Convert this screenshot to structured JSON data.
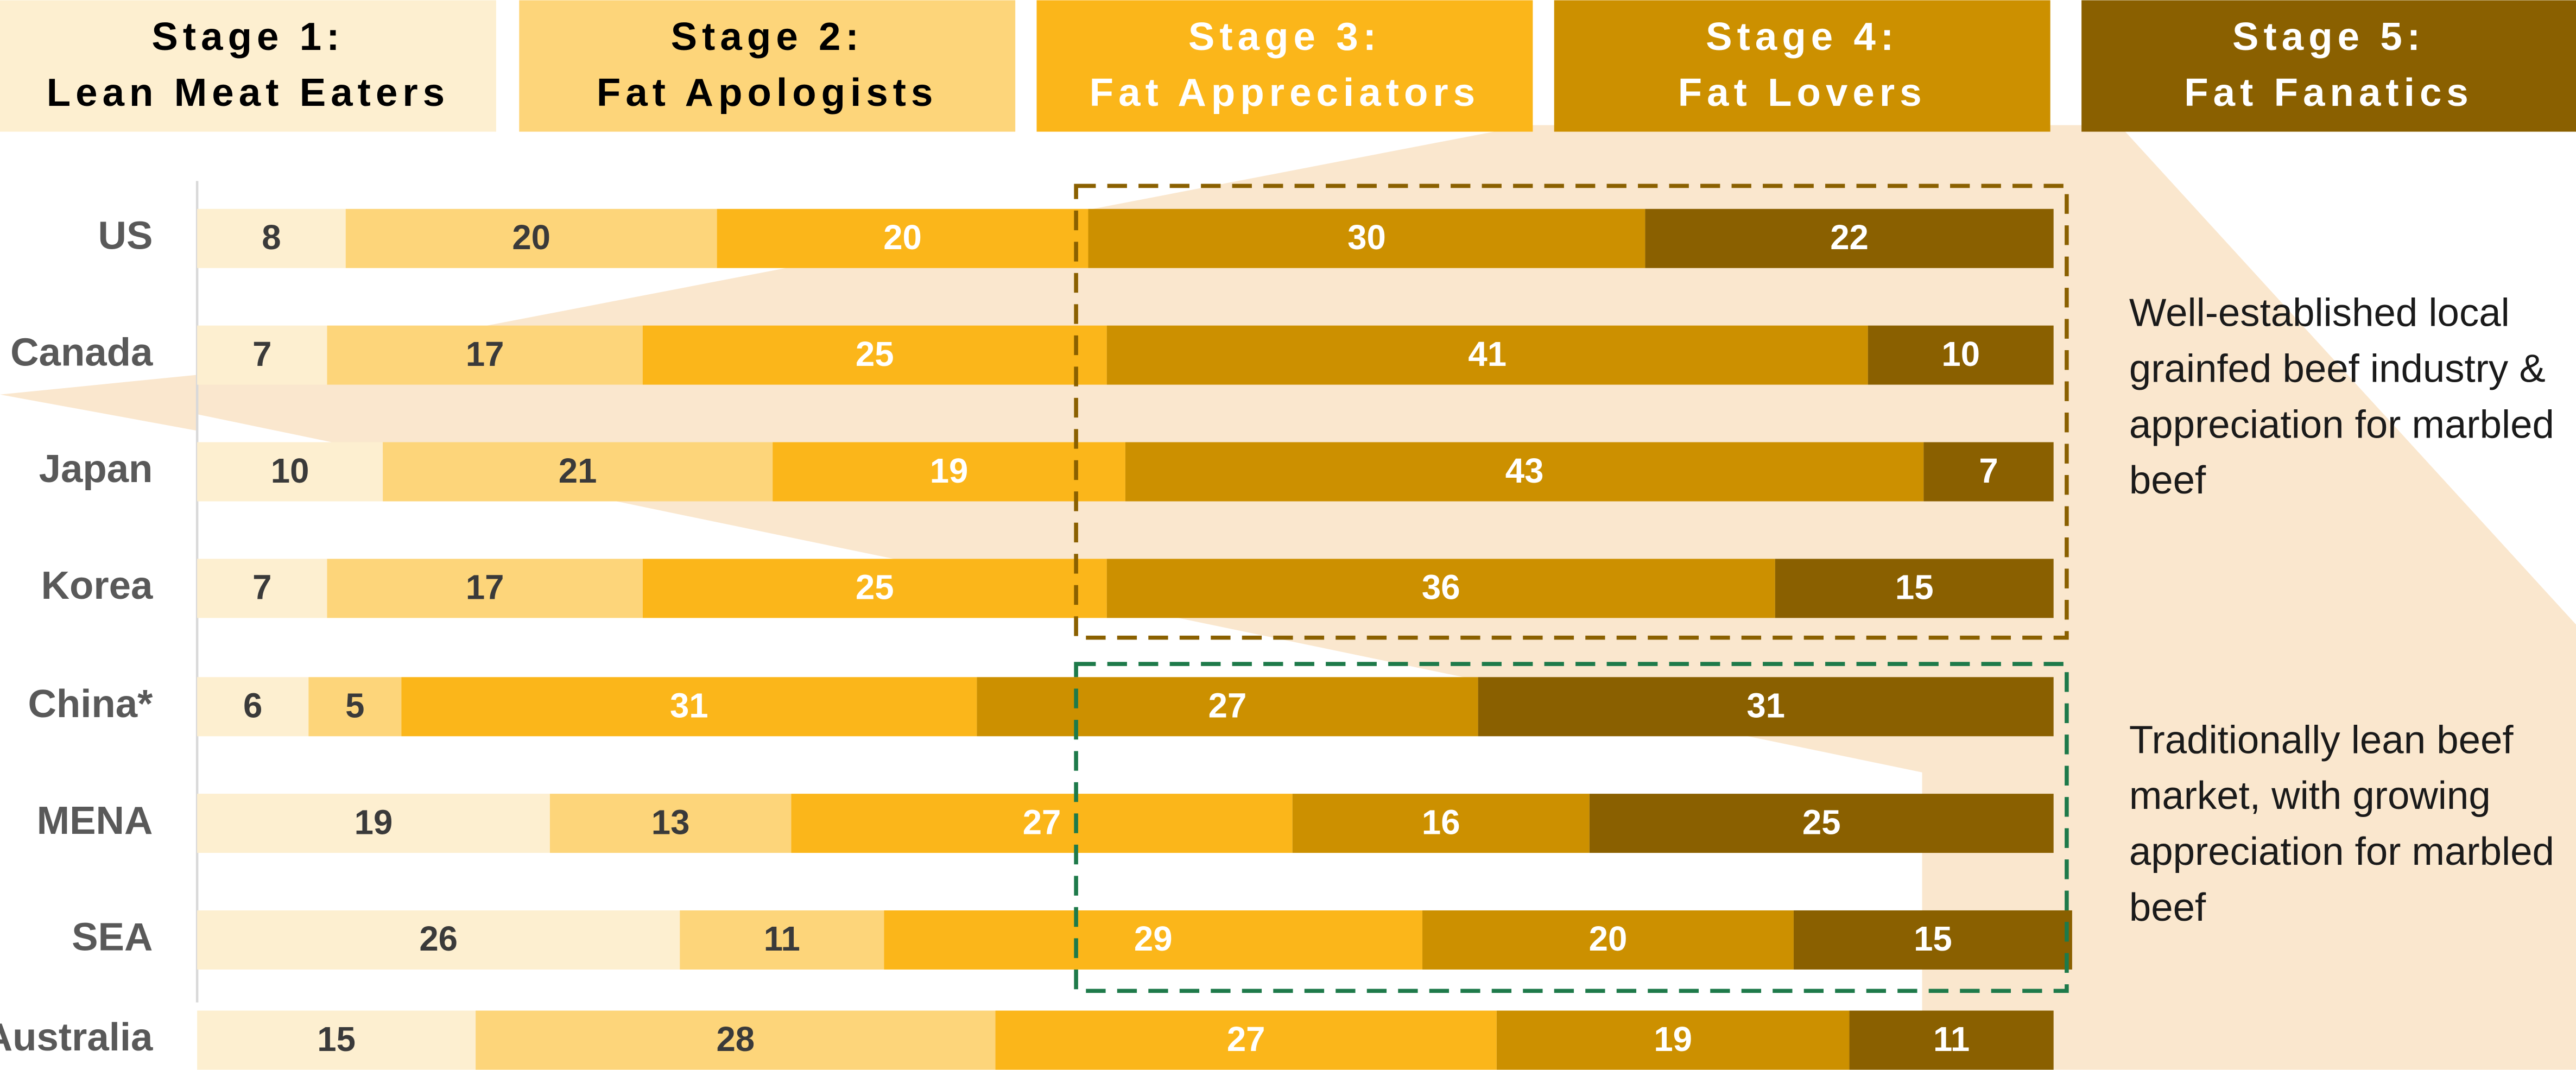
{
  "chart_data": {
    "type": "stacked-barh",
    "categories": [
      "US",
      "Canada",
      "Japan",
      "Korea",
      "China*",
      "MENA",
      "SEA",
      "Australia"
    ],
    "xlim": [
      0,
      100
    ],
    "series": [
      {
        "name": "Stage 1:\nLean Meat Eaters",
        "color": "#fdefd0",
        "label_color": "#3a3a3a",
        "header_text_color": "#000000",
        "values": [
          8,
          7,
          10,
          7,
          6,
          19,
          26,
          15
        ]
      },
      {
        "name": "Stage 2:\nFat Apologists",
        "color": "#fdd57a",
        "label_color": "#3a3a3a",
        "header_text_color": "#000000",
        "values": [
          20,
          17,
          21,
          17,
          5,
          13,
          11,
          28
        ]
      },
      {
        "name": "Stage 3:\nFat Appreciators",
        "color": "#fbb61a",
        "label_color": "#ffffff",
        "header_text_color": "#ffffff",
        "values": [
          20,
          25,
          19,
          25,
          31,
          27,
          29,
          27
        ]
      },
      {
        "name": "Stage 4:\nFat Lovers",
        "color": "#cc9000",
        "label_color": "#ffffff",
        "header_text_color": "#ffffff",
        "values": [
          30,
          41,
          43,
          36,
          27,
          16,
          20,
          19
        ]
      },
      {
        "name": "Stage 5:\nFat Fanatics",
        "color": "#8a6000",
        "label_color": "#ffffff",
        "header_text_color": "#ffffff",
        "values": [
          22,
          10,
          7,
          15,
          31,
          25,
          15,
          11
        ]
      }
    ],
    "annotations": [
      {
        "text": "Well-established local\ngrainfed beef industry &\nappreciation for marbled\nbeef",
        "color": "#8a6000"
      },
      {
        "text": "Traditionally lean beef\nmarket, with growing\nappreciation for marbled\nbeef",
        "color": "#1e7a4a"
      }
    ]
  }
}
